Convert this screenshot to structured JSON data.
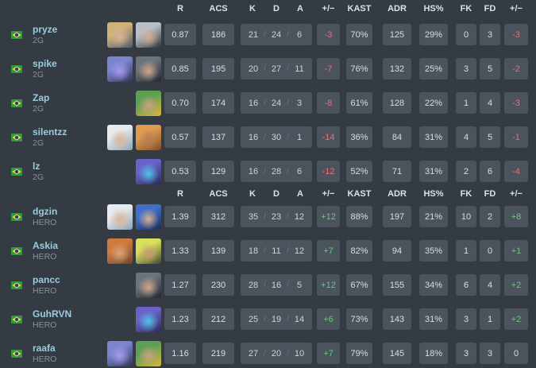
{
  "columns": [
    "R",
    "ACS",
    "K",
    "D",
    "A",
    "+/−",
    "KAST",
    "ADR",
    "HS%",
    "FK",
    "FD",
    "+/−"
  ],
  "kda_sep": "/",
  "colors": {
    "page_bg": "#343b43",
    "box_bg": "#4b535c",
    "positive_green": "#67c97e",
    "negative_red": "#ef6d78",
    "player_name_blue": "#9ccbe0",
    "team_label_gray": "#8a9299"
  },
  "teams": [
    {
      "name": "2G",
      "players": [
        {
          "name": "pryze",
          "team": "2G",
          "flag": "brazil-flag-icon",
          "agents": [
            {
              "icon": "sova-agent-icon",
              "c1": "#cdb27a",
              "c2": "#4e5c6e",
              "fc": "#d8b496"
            },
            {
              "icon": "fade-agent-icon",
              "c1": "#b9bfc6",
              "c2": "#2f333c",
              "fc": "#d3ae92"
            }
          ],
          "rating": "0.87",
          "acs": "186",
          "kills": "21",
          "deaths": "24",
          "assists": "6",
          "diff": "-3",
          "kast": "70%",
          "adr": "125",
          "hs": "29%",
          "fk": "0",
          "fd": "3",
          "fkfd_diff": "-3"
        },
        {
          "name": "spike",
          "team": "2G",
          "flag": "brazil-flag-icon",
          "agents": [
            {
              "icon": "kayo-agent-icon",
              "c1": "#7b84cf",
              "c2": "#2e3550",
              "fc": "#a79bf0"
            },
            {
              "icon": "viper-agent-icon",
              "c1": "#6d737b",
              "c2": "#23272e",
              "fc": "#d3a88c"
            }
          ],
          "rating": "0.85",
          "acs": "195",
          "kills": "20",
          "deaths": "27",
          "assists": "11",
          "diff": "-7",
          "kast": "76%",
          "adr": "132",
          "hs": "25%",
          "fk": "3",
          "fd": "5",
          "fkfd_diff": "-2"
        },
        {
          "name": "Zap",
          "team": "2G",
          "flag": "brazil-flag-icon",
          "agents": [
            {
              "icon": "killjoy-agent-icon",
              "c1": "#5ba053",
              "c2": "#e0b43c",
              "fc": "#caa183"
            }
          ],
          "rating": "0.70",
          "acs": "174",
          "kills": "16",
          "deaths": "24",
          "assists": "3",
          "diff": "-8",
          "kast": "61%",
          "adr": "128",
          "hs": "22%",
          "fk": "1",
          "fd": "4",
          "fkfd_diff": "-3"
        },
        {
          "name": "silentzz",
          "team": "2G",
          "flag": "brazil-flag-icon",
          "agents": [
            {
              "icon": "jett-agent-icon",
              "c1": "#e6ebef",
              "c2": "#8fa3b5",
              "fc": "#dbb59a"
            },
            {
              "icon": "raze-agent-icon",
              "c1": "#e09a52",
              "c2": "#7c4f2a",
              "fc": "#b97f52"
            }
          ],
          "rating": "0.57",
          "acs": "137",
          "kills": "16",
          "deaths": "30",
          "assists": "1",
          "diff": "-14",
          "kast": "36%",
          "adr": "84",
          "hs": "31%",
          "fk": "4",
          "fd": "5",
          "fkfd_diff": "-1"
        },
        {
          "name": "lz",
          "team": "2G",
          "flag": "brazil-flag-icon",
          "agents": [
            {
              "icon": "omen-agent-icon",
              "c1": "#6b61c9",
              "c2": "#2e2a55",
              "fc": "#4fc4e8"
            }
          ],
          "rating": "0.53",
          "acs": "129",
          "kills": "16",
          "deaths": "28",
          "assists": "6",
          "diff": "-12",
          "kast": "52%",
          "adr": "71",
          "hs": "31%",
          "fk": "2",
          "fd": "6",
          "fkfd_diff": "-4"
        }
      ]
    },
    {
      "name": "HERO",
      "players": [
        {
          "name": "dgzin",
          "team": "HERO",
          "flag": "brazil-flag-icon",
          "agents": [
            {
              "icon": "jett-agent-icon",
              "c1": "#e6ebef",
              "c2": "#8fa3b5",
              "fc": "#dbb59a"
            },
            {
              "icon": "neon-agent-icon",
              "c1": "#3f6fc9",
              "c2": "#1d2c52",
              "fc": "#d9b091"
            }
          ],
          "rating": "1.39",
          "acs": "312",
          "kills": "35",
          "deaths": "23",
          "assists": "12",
          "diff": "+12",
          "kast": "88%",
          "adr": "197",
          "hs": "21%",
          "fk": "10",
          "fd": "2",
          "fkfd_diff": "+8"
        },
        {
          "name": "Askia",
          "team": "HERO",
          "flag": "brazil-flag-icon",
          "agents": [
            {
              "icon": "breach-agent-icon",
              "c1": "#cf7a3e",
              "c2": "#6b4632",
              "fc": "#d8a679"
            },
            {
              "icon": "gekko-agent-icon",
              "c1": "#d8e05e",
              "c2": "#3f4a33",
              "fc": "#c99b72"
            }
          ],
          "rating": "1.33",
          "acs": "139",
          "kills": "18",
          "deaths": "11",
          "assists": "12",
          "diff": "+7",
          "kast": "82%",
          "adr": "94",
          "hs": "35%",
          "fk": "1",
          "fd": "0",
          "fkfd_diff": "+1"
        },
        {
          "name": "pancc",
          "team": "HERO",
          "flag": "brazil-flag-icon",
          "agents": [
            {
              "icon": "viper-agent-icon",
              "c1": "#6d737b",
              "c2": "#23272e",
              "fc": "#d3a88c"
            }
          ],
          "rating": "1.27",
          "acs": "230",
          "kills": "28",
          "deaths": "16",
          "assists": "5",
          "diff": "+12",
          "kast": "67%",
          "adr": "155",
          "hs": "34%",
          "fk": "6",
          "fd": "4",
          "fkfd_diff": "+2"
        },
        {
          "name": "GuhRVN",
          "team": "HERO",
          "flag": "brazil-flag-icon",
          "agents": [
            {
              "icon": "omen-agent-icon",
              "c1": "#6b61c9",
              "c2": "#2e2a55",
              "fc": "#4fc4e8"
            }
          ],
          "rating": "1.23",
          "acs": "212",
          "kills": "25",
          "deaths": "19",
          "assists": "14",
          "diff": "+6",
          "kast": "73%",
          "adr": "143",
          "hs": "31%",
          "fk": "3",
          "fd": "1",
          "fkfd_diff": "+2"
        },
        {
          "name": "raafa",
          "team": "HERO",
          "flag": "brazil-flag-icon",
          "agents": [
            {
              "icon": "kayo-agent-icon",
              "c1": "#7b84cf",
              "c2": "#2e3550",
              "fc": "#a79bf0"
            },
            {
              "icon": "killjoy-agent-icon",
              "c1": "#5ba053",
              "c2": "#e0b43c",
              "fc": "#caa183"
            }
          ],
          "rating": "1.16",
          "acs": "219",
          "kills": "27",
          "deaths": "20",
          "assists": "10",
          "diff": "+7",
          "kast": "79%",
          "adr": "145",
          "hs": "18%",
          "fk": "3",
          "fd": "3",
          "fkfd_diff": "0"
        }
      ]
    }
  ]
}
